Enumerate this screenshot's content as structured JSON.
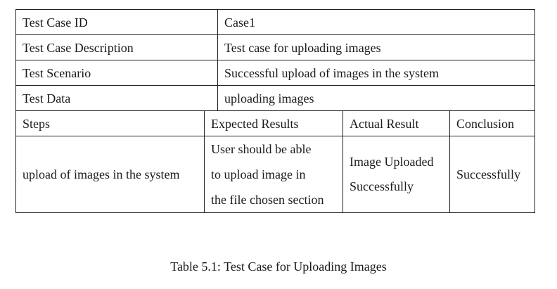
{
  "rows": [
    {
      "label": "Test Case ID",
      "value": "Case1"
    },
    {
      "label": "Test Case Description",
      "value": "Test case for uploading images"
    },
    {
      "label": "Test Scenario",
      "value": "Successful upload of images in the system"
    },
    {
      "label": "Test Data",
      "value": "uploading images"
    }
  ],
  "steps_table": {
    "headers": [
      "Steps",
      "Expected Results",
      "Actual Result",
      "Conclusion"
    ],
    "row": {
      "steps": "upload of images in the system",
      "expected_lines": [
        "User should be able",
        "to upload image in",
        "the file chosen section"
      ],
      "actual_lines": [
        "Image Uploaded",
        "Successfully"
      ],
      "conclusion": "Successfully"
    }
  },
  "caption": "Table 5.1: Test Case for Uploading Images"
}
